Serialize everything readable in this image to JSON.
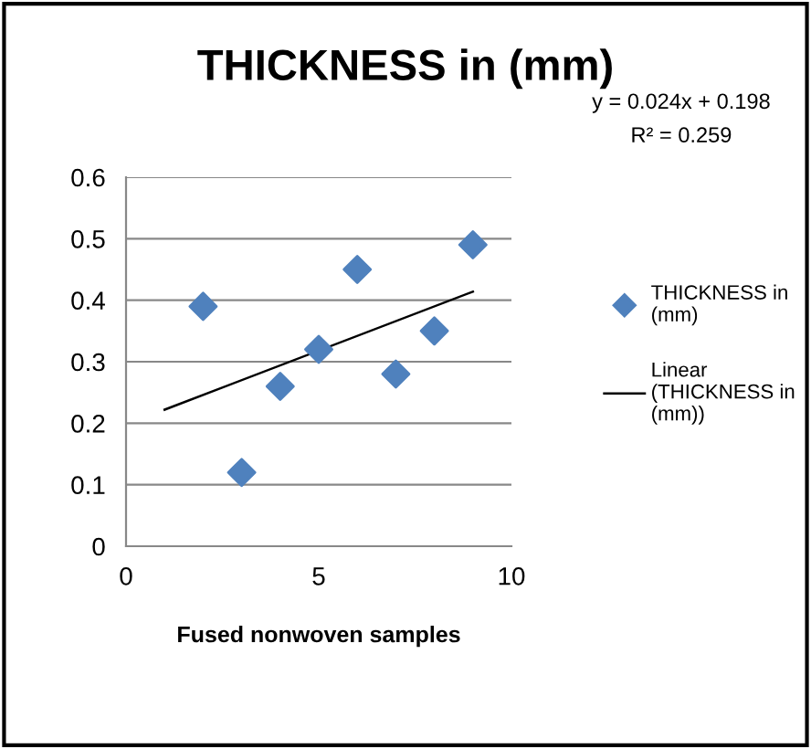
{
  "chart_data": {
    "type": "scatter",
    "title": "THICKNESS in (mm)",
    "xlabel": "Fused nonwoven samples",
    "series": [
      {
        "name": "THICKNESS in (mm)",
        "color": "#4f81bd",
        "marker": "diamond",
        "x": [
          2,
          3,
          4,
          5,
          6,
          7,
          8,
          9
        ],
        "values": [
          0.39,
          0.12,
          0.26,
          0.32,
          0.45,
          0.28,
          0.35,
          0.49
        ]
      },
      {
        "name": "Linear (THICKNESS in (mm))",
        "type": "line",
        "color": "#000000",
        "marker": "none",
        "x": [
          1,
          9
        ],
        "values": [
          0.222,
          0.414
        ]
      }
    ],
    "annotations": [
      "y = 0.024x + 0.198",
      "R² = 0.259"
    ],
    "xlim": [
      0,
      10
    ],
    "xticks": [
      0,
      5,
      10
    ],
    "ylim": [
      0,
      0.6
    ],
    "yticks": [
      0,
      0.1,
      0.2,
      0.3,
      0.4,
      0.5,
      0.6
    ],
    "grid": "y",
    "legend": "right"
  }
}
